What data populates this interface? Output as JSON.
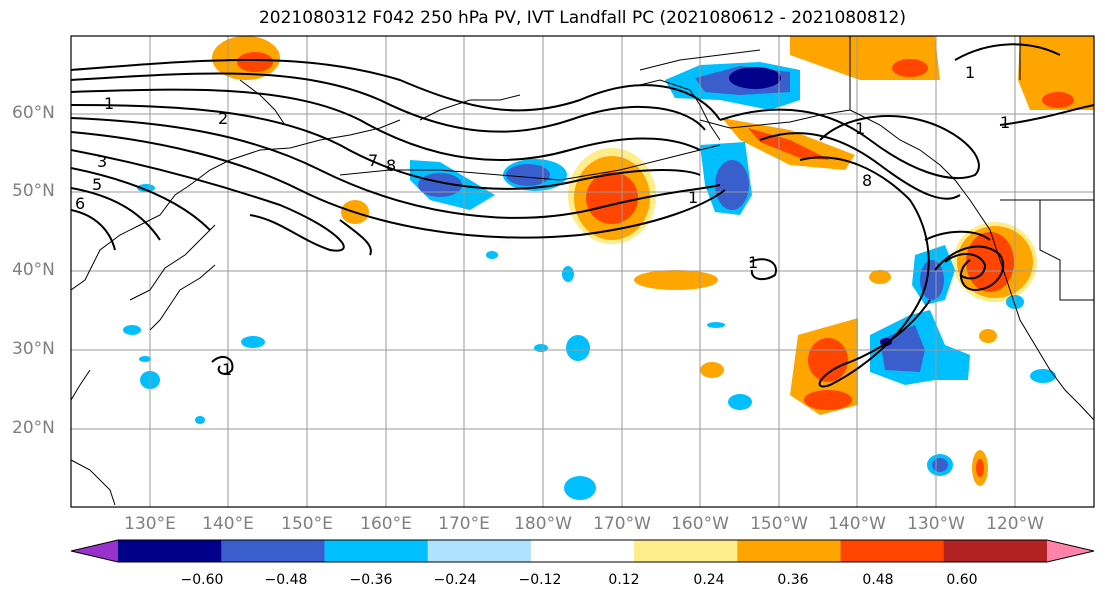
{
  "title": "2021080312 F042 250 hPa PV, IVT Landfall PC (2021080612 - 2021080812)",
  "lat_labels": [
    "60°N",
    "50°N",
    "40°N",
    "30°N",
    "20°N"
  ],
  "lon_labels": [
    "130°E",
    "140°E",
    "150°E",
    "160°E",
    "170°E",
    "180°W",
    "170°W",
    "160°W",
    "150°W",
    "140°W",
    "130°W",
    "120°W"
  ],
  "contour_labels": [
    "1",
    "2",
    "3",
    "5",
    "6",
    "7",
    "8",
    "1",
    "1",
    "1",
    "8",
    "1",
    "1",
    "1"
  ],
  "colorbar": {
    "ticks": [
      "−0.60",
      "−0.48",
      "−0.36",
      "−0.24",
      "−0.12",
      "0.12",
      "0.24",
      "0.36",
      "0.48",
      "0.60"
    ],
    "colors": [
      "#9932cc",
      "#00008b",
      "#3a5fcd",
      "#00bfff",
      "#b0e2ff",
      "#ffffff",
      "#ffec8b",
      "#ffa500",
      "#ff4500",
      "#b22222",
      "#ff82ab"
    ]
  },
  "palette": {
    "neg_dark": "#00008b",
    "neg_mid": "#3a5fcd",
    "neg_light": "#00bfff",
    "neg_pale": "#b0e2ff",
    "pos_pale": "#ffec8b",
    "pos_light": "#ffa500",
    "pos_mid": "#ff4500",
    "pos_dark": "#b22222",
    "grid": "#9a9a9a",
    "contour": "#000000"
  }
}
